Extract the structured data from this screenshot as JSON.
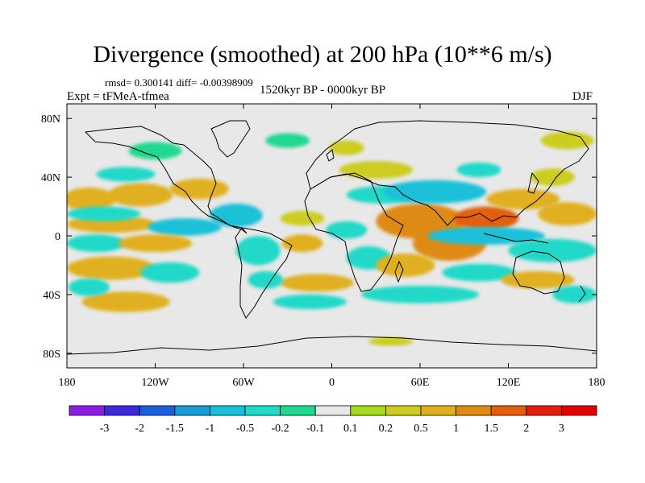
{
  "title": "Divergence (smoothed) at 200 hPa (10**6 m/s)",
  "stats": "rmsd= 0.300141 diff= -0.00398909",
  "experiment": "Expt = tFMeA-tfmea",
  "period": "1520kyr BP - 0000kyr BP",
  "season": "DJF",
  "colors": {
    "background": "#e8e8e8",
    "coast": "#000000"
  },
  "chart_data": {
    "type": "heatmap",
    "projection": "cylindrical-equidistant",
    "lon_range": [
      -180,
      180
    ],
    "lat_range": [
      -90,
      90
    ],
    "x_ticks": [
      {
        "lon": -180,
        "label": "180"
      },
      {
        "lon": -120,
        "label": "120W"
      },
      {
        "lon": -60,
        "label": "60W"
      },
      {
        "lon": 0,
        "label": "0"
      },
      {
        "lon": 60,
        "label": "60E"
      },
      {
        "lon": 120,
        "label": "120E"
      },
      {
        "lon": 180,
        "label": "180"
      }
    ],
    "y_ticks": [
      {
        "lat": 80,
        "label": "80N"
      },
      {
        "lat": 40,
        "label": "40N"
      },
      {
        "lat": 0,
        "label": "0"
      },
      {
        "lat": -40,
        "label": "40S"
      },
      {
        "lat": -80,
        "label": "80S"
      }
    ],
    "colorbar": {
      "boundaries": [
        "-3",
        "-2",
        "-1.5",
        "-1",
        "-0.5",
        "-0.2",
        "-0.1",
        "0.1",
        "0.2",
        "0.5",
        "1",
        "1.5",
        "2",
        "3"
      ],
      "colors": [
        "#8a1fe0",
        "#3a2ad8",
        "#1e5ed8",
        "#1a9ad8",
        "#1ac0d8",
        "#22d8c8",
        "#22d890",
        "#e8e8e8",
        "#a8d822",
        "#cccc22",
        "#e0b020",
        "#e08a18",
        "#e06010",
        "#e02010",
        "#e00000"
      ]
    },
    "field_blobs": [
      {
        "lon": -165,
        "lat": 25,
        "rx": 18,
        "ry": 8,
        "value": 0.7
      },
      {
        "lon": -130,
        "lat": 28,
        "rx": 22,
        "ry": 8,
        "value": 0.6
      },
      {
        "lon": -90,
        "lat": 32,
        "rx": 20,
        "ry": 7,
        "value": 0.5
      },
      {
        "lon": -150,
        "lat": 8,
        "rx": 30,
        "ry": 6,
        "value": 0.8
      },
      {
        "lon": -100,
        "lat": 6,
        "rx": 25,
        "ry": 6,
        "value": -0.6
      },
      {
        "lon": -155,
        "lat": 15,
        "rx": 25,
        "ry": 5,
        "value": -0.5
      },
      {
        "lon": -160,
        "lat": -5,
        "rx": 20,
        "ry": 6,
        "value": -0.5
      },
      {
        "lon": -120,
        "lat": -5,
        "rx": 25,
        "ry": 6,
        "value": 0.6
      },
      {
        "lon": -150,
        "lat": -22,
        "rx": 30,
        "ry": 8,
        "value": 0.9
      },
      {
        "lon": -110,
        "lat": -25,
        "rx": 20,
        "ry": 7,
        "value": -0.4
      },
      {
        "lon": -140,
        "lat": -45,
        "rx": 30,
        "ry": 7,
        "value": 0.6
      },
      {
        "lon": -165,
        "lat": -35,
        "rx": 14,
        "ry": 6,
        "value": -0.4
      },
      {
        "lon": -65,
        "lat": 14,
        "rx": 18,
        "ry": 8,
        "value": -0.7
      },
      {
        "lon": -50,
        "lat": -10,
        "rx": 15,
        "ry": 10,
        "value": -0.3
      },
      {
        "lon": -20,
        "lat": -5,
        "rx": 14,
        "ry": 6,
        "value": 0.6
      },
      {
        "lon": -20,
        "lat": 12,
        "rx": 15,
        "ry": 5,
        "value": 0.4
      },
      {
        "lon": -10,
        "lat": -32,
        "rx": 25,
        "ry": 6,
        "value": 0.5
      },
      {
        "lon": -45,
        "lat": -30,
        "rx": 12,
        "ry": 6,
        "value": -0.4
      },
      {
        "lon": -15,
        "lat": -45,
        "rx": 25,
        "ry": 5,
        "value": -0.3
      },
      {
        "lon": 10,
        "lat": 4,
        "rx": 14,
        "ry": 6,
        "value": -0.5
      },
      {
        "lon": 35,
        "lat": 28,
        "rx": 25,
        "ry": 6,
        "value": -0.5
      },
      {
        "lon": 25,
        "lat": -15,
        "rx": 15,
        "ry": 8,
        "value": -0.5
      },
      {
        "lon": 60,
        "lat": 10,
        "rx": 30,
        "ry": 12,
        "value": 1.0
      },
      {
        "lon": 80,
        "lat": -5,
        "rx": 25,
        "ry": 12,
        "value": 1.0
      },
      {
        "lon": 105,
        "lat": 12,
        "rx": 22,
        "ry": 8,
        "value": 1.6
      },
      {
        "lon": 105,
        "lat": 0,
        "rx": 40,
        "ry": 6,
        "value": -0.8
      },
      {
        "lon": 70,
        "lat": 30,
        "rx": 35,
        "ry": 8,
        "value": -0.9
      },
      {
        "lon": 130,
        "lat": 25,
        "rx": 25,
        "ry": 7,
        "value": 0.6
      },
      {
        "lon": 160,
        "lat": 15,
        "rx": 20,
        "ry": 8,
        "value": 0.5
      },
      {
        "lon": 150,
        "lat": -10,
        "rx": 30,
        "ry": 8,
        "value": -0.5
      },
      {
        "lon": 100,
        "lat": -25,
        "rx": 25,
        "ry": 6,
        "value": -0.4
      },
      {
        "lon": 140,
        "lat": -30,
        "rx": 25,
        "ry": 6,
        "value": 0.6
      },
      {
        "lon": 60,
        "lat": -40,
        "rx": 40,
        "ry": 6,
        "value": -0.4
      },
      {
        "lon": 165,
        "lat": -40,
        "rx": 15,
        "ry": 6,
        "value": -0.4
      },
      {
        "lon": 50,
        "lat": -20,
        "rx": 20,
        "ry": 8,
        "value": 0.7
      },
      {
        "lon": 10,
        "lat": 60,
        "rx": 12,
        "ry": 5,
        "value": 0.3
      },
      {
        "lon": -30,
        "lat": 65,
        "rx": 15,
        "ry": 5,
        "value": -0.2
      },
      {
        "lon": -120,
        "lat": 58,
        "rx": 18,
        "ry": 6,
        "value": -0.2
      },
      {
        "lon": -140,
        "lat": 42,
        "rx": 20,
        "ry": 5,
        "value": -0.3
      },
      {
        "lon": 30,
        "lat": 45,
        "rx": 25,
        "ry": 6,
        "value": 0.3
      },
      {
        "lon": 100,
        "lat": 45,
        "rx": 15,
        "ry": 5,
        "value": -0.3
      },
      {
        "lon": 150,
        "lat": 40,
        "rx": 15,
        "ry": 6,
        "value": 0.3
      },
      {
        "lon": 160,
        "lat": 65,
        "rx": 18,
        "ry": 6,
        "value": 0.3
      },
      {
        "lon": 40,
        "lat": -72,
        "rx": 15,
        "ry": 3,
        "value": 0.3
      }
    ]
  }
}
